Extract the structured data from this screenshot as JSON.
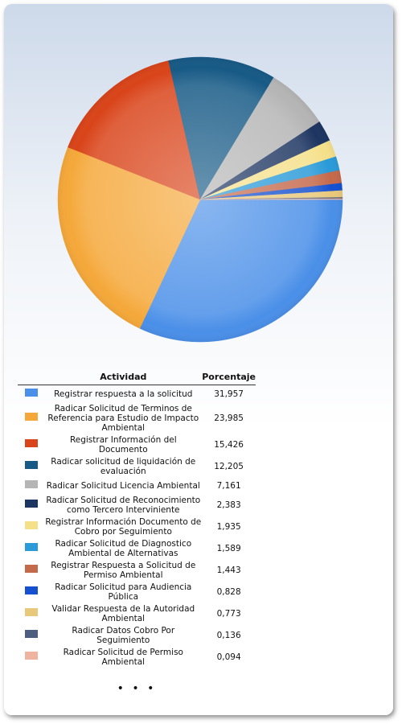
{
  "chart_data": {
    "type": "pie",
    "header_label": "Actividad",
    "header_value": "Porcentaje",
    "categories": [
      "Registrar respuesta a la solicitud",
      "Radicar Solicitud de Terminos de Referencia para Estudio de Impacto Ambiental",
      "Registrar Información del Documento",
      "Radicar solicitud de liquidación de evaluación",
      "Radicar Solicitud Licencia Ambiental",
      "Radicar Solicitud de Reconocimiento como Tercero Interviniente",
      "Registrar Información Documento de Cobro por Seguimiento",
      "Radicar Solicitud de Diagnostico Ambiental de Alternativas",
      "Registrar Respuesta a Solicitud de Permiso Ambiental",
      "Radicar Solicitud para Audiencia Pública",
      "Validar Respuesta de la Autoridad Ambiental",
      "Radicar Datos Cobro Por Seguimiento",
      "Radicar Solicitud de Permiso Ambiental"
    ],
    "values": [
      31.957,
      23.985,
      15.426,
      12.205,
      7.161,
      2.383,
      1.935,
      1.589,
      1.443,
      0.828,
      0.773,
      0.136,
      0.094
    ],
    "value_labels": [
      "31,957",
      "23,985",
      "15,426",
      "12,205",
      "7,161",
      "2,383",
      "1,935",
      "1,589",
      "1,443",
      "0,828",
      "0,773",
      "0,136",
      "0,094"
    ],
    "colors": [
      "#4a8fe8",
      "#f5a83a",
      "#d9441a",
      "#175a86",
      "#b5b5b5",
      "#1d3561",
      "#f5e08a",
      "#2a9ad8",
      "#c5694b",
      "#1450d0",
      "#e8c87a",
      "#4d5e7e",
      "#efb4a0"
    ],
    "ellipsis": "• • •"
  }
}
